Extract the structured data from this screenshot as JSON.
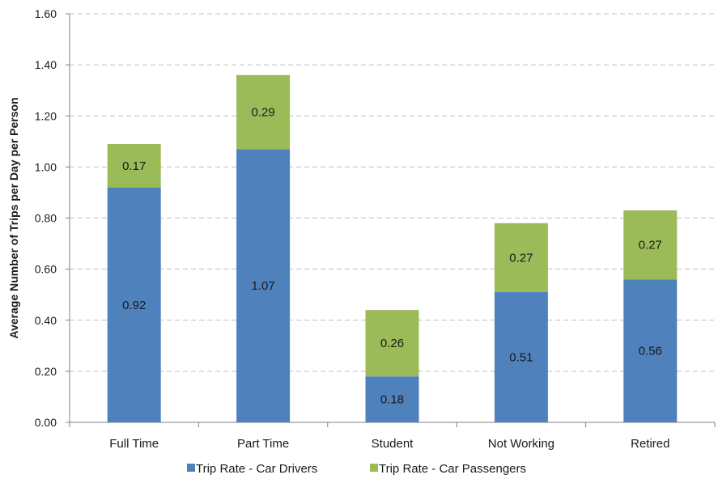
{
  "chart_data": {
    "type": "bar",
    "stacked": true,
    "categories": [
      "Full Time",
      "Part Time",
      "Student",
      "Not Working",
      "Retired"
    ],
    "series": [
      {
        "name": "Trip Rate - Car Drivers",
        "color": "#4f81bd",
        "values": [
          0.92,
          1.07,
          0.18,
          0.51,
          0.56
        ],
        "labels": [
          "0.92",
          "1.07",
          "0.18",
          "0.51",
          "0.56"
        ]
      },
      {
        "name": "Trip Rate - Car Passengers",
        "color": "#9bbb59",
        "values": [
          0.17,
          0.29,
          0.26,
          0.27,
          0.27
        ],
        "labels": [
          "0.17",
          "0.29",
          "0.26",
          "0.27",
          "0.27"
        ]
      }
    ],
    "ylabel": "Average Number of Trips per Day per Person",
    "xlabel": "",
    "ylim": [
      0,
      1.6
    ],
    "yticks": [
      "0.00",
      "0.20",
      "0.40",
      "0.60",
      "0.80",
      "1.00",
      "1.20",
      "1.40",
      "1.60"
    ],
    "grid": true,
    "legend_position": "bottom"
  }
}
